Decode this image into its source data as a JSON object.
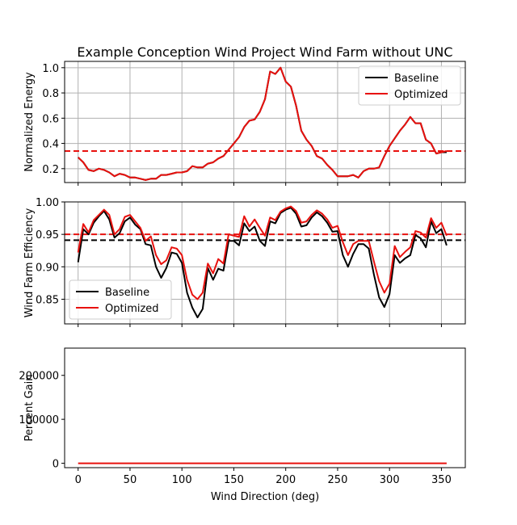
{
  "title": "Example Conception Wind Project Wind Farm without UNC",
  "colors": {
    "baseline": "#000000",
    "optimized": "#e8110e",
    "grid": "#b0b0b0"
  },
  "chart_data": [
    {
      "type": "line",
      "ylabel": "Normalized Energy",
      "xlabel": "",
      "xlim": [
        -13,
        373
      ],
      "ylim": [
        0.09,
        1.05
      ],
      "yticks": [
        0.2,
        0.4,
        0.6,
        0.8,
        1.0
      ],
      "ytick_labels": [
        "0.2",
        "0.4",
        "0.6",
        "0.8",
        "1.0"
      ],
      "xticks": [
        0,
        50,
        100,
        150,
        200,
        250,
        300,
        350
      ],
      "xtick_labels": [],
      "grid": true,
      "legend": {
        "position": "top-right",
        "entries": [
          "Baseline",
          "Optimized"
        ]
      },
      "hlines": [
        {
          "series": "Optimized",
          "y": 0.34,
          "style": "dashed"
        }
      ],
      "x": [
        0,
        5,
        10,
        15,
        20,
        25,
        30,
        35,
        40,
        45,
        50,
        55,
        60,
        65,
        70,
        75,
        80,
        85,
        90,
        95,
        100,
        105,
        110,
        115,
        120,
        125,
        130,
        135,
        140,
        145,
        150,
        155,
        160,
        165,
        170,
        175,
        180,
        185,
        190,
        195,
        200,
        205,
        210,
        215,
        220,
        225,
        230,
        235,
        240,
        245,
        250,
        255,
        260,
        265,
        270,
        275,
        280,
        285,
        290,
        295,
        300,
        305,
        310,
        315,
        320,
        325,
        330,
        335,
        340,
        345,
        350,
        355
      ],
      "series": [
        {
          "name": "Baseline",
          "values": [
            0.29,
            0.25,
            0.19,
            0.18,
            0.2,
            0.19,
            0.17,
            0.14,
            0.16,
            0.15,
            0.13,
            0.13,
            0.12,
            0.11,
            0.12,
            0.12,
            0.15,
            0.15,
            0.16,
            0.17,
            0.17,
            0.18,
            0.22,
            0.21,
            0.21,
            0.24,
            0.25,
            0.28,
            0.3,
            0.35,
            0.4,
            0.45,
            0.53,
            0.58,
            0.59,
            0.65,
            0.75,
            0.97,
            0.95,
            1.0,
            0.89,
            0.85,
            0.7,
            0.5,
            0.43,
            0.38,
            0.3,
            0.28,
            0.23,
            0.19,
            0.14,
            0.14,
            0.14,
            0.15,
            0.13,
            0.18,
            0.2,
            0.2,
            0.21,
            0.3,
            0.38,
            0.44,
            0.5,
            0.55,
            0.61,
            0.56,
            0.56,
            0.43,
            0.4,
            0.32,
            0.33,
            0.33
          ]
        },
        {
          "name": "Optimized",
          "values": [
            0.29,
            0.25,
            0.19,
            0.18,
            0.2,
            0.19,
            0.17,
            0.14,
            0.16,
            0.15,
            0.13,
            0.13,
            0.12,
            0.11,
            0.12,
            0.12,
            0.15,
            0.15,
            0.16,
            0.17,
            0.17,
            0.18,
            0.22,
            0.21,
            0.21,
            0.24,
            0.25,
            0.28,
            0.3,
            0.35,
            0.4,
            0.45,
            0.53,
            0.58,
            0.59,
            0.65,
            0.75,
            0.97,
            0.95,
            1.0,
            0.89,
            0.85,
            0.7,
            0.5,
            0.43,
            0.38,
            0.3,
            0.28,
            0.23,
            0.19,
            0.14,
            0.14,
            0.14,
            0.15,
            0.13,
            0.18,
            0.2,
            0.2,
            0.21,
            0.3,
            0.38,
            0.44,
            0.5,
            0.55,
            0.61,
            0.56,
            0.56,
            0.43,
            0.4,
            0.32,
            0.33,
            0.34
          ]
        }
      ]
    },
    {
      "type": "line",
      "ylabel": "Wind Farm Efficiency",
      "xlabel": "",
      "xlim": [
        -13,
        373
      ],
      "ylim": [
        0.812,
        1.0
      ],
      "yticks": [
        0.85,
        0.9,
        0.95,
        1.0
      ],
      "ytick_labels": [
        "0.85",
        "0.90",
        "0.95",
        "1.00"
      ],
      "xticks": [
        0,
        50,
        100,
        150,
        200,
        250,
        300,
        350
      ],
      "xtick_labels": [],
      "grid": true,
      "legend": {
        "position": "lower-left",
        "entries": [
          "Baseline",
          "Optimized"
        ]
      },
      "hlines": [
        {
          "series": "Baseline",
          "y": 0.941,
          "style": "dashed"
        },
        {
          "series": "Optimized",
          "y": 0.95,
          "style": "dashed"
        }
      ],
      "x": [
        0,
        5,
        10,
        15,
        20,
        25,
        30,
        35,
        40,
        45,
        50,
        55,
        60,
        65,
        70,
        75,
        80,
        85,
        90,
        95,
        100,
        105,
        110,
        115,
        120,
        125,
        130,
        135,
        140,
        145,
        150,
        155,
        160,
        165,
        170,
        175,
        180,
        185,
        190,
        195,
        200,
        205,
        210,
        215,
        220,
        225,
        230,
        235,
        240,
        245,
        250,
        255,
        260,
        265,
        270,
        275,
        280,
        285,
        290,
        295,
        300,
        305,
        310,
        315,
        320,
        325,
        330,
        335,
        340,
        345,
        350,
        355
      ],
      "series": [
        {
          "name": "Baseline",
          "values": [
            0.907,
            0.958,
            0.95,
            0.968,
            0.978,
            0.986,
            0.973,
            0.945,
            0.952,
            0.97,
            0.976,
            0.965,
            0.958,
            0.935,
            0.933,
            0.9,
            0.883,
            0.898,
            0.922,
            0.92,
            0.906,
            0.86,
            0.837,
            0.822,
            0.835,
            0.898,
            0.88,
            0.897,
            0.894,
            0.94,
            0.94,
            0.933,
            0.967,
            0.955,
            0.962,
            0.94,
            0.932,
            0.97,
            0.967,
            0.983,
            0.988,
            0.991,
            0.982,
            0.962,
            0.964,
            0.976,
            0.984,
            0.978,
            0.968,
            0.954,
            0.955,
            0.918,
            0.9,
            0.92,
            0.935,
            0.935,
            0.928,
            0.888,
            0.853,
            0.838,
            0.858,
            0.918,
            0.906,
            0.913,
            0.918,
            0.949,
            0.944,
            0.93,
            0.97,
            0.952,
            0.958,
            0.933
          ]
        },
        {
          "name": "Optimized",
          "values": [
            0.922,
            0.966,
            0.953,
            0.972,
            0.98,
            0.988,
            0.98,
            0.95,
            0.958,
            0.977,
            0.98,
            0.97,
            0.96,
            0.94,
            0.947,
            0.918,
            0.904,
            0.91,
            0.93,
            0.928,
            0.918,
            0.88,
            0.857,
            0.85,
            0.86,
            0.905,
            0.89,
            0.912,
            0.905,
            0.95,
            0.948,
            0.946,
            0.978,
            0.962,
            0.973,
            0.96,
            0.948,
            0.976,
            0.972,
            0.985,
            0.99,
            0.993,
            0.986,
            0.968,
            0.97,
            0.98,
            0.987,
            0.982,
            0.973,
            0.96,
            0.963,
            0.938,
            0.918,
            0.935,
            0.94,
            0.94,
            0.94,
            0.908,
            0.878,
            0.86,
            0.874,
            0.932,
            0.915,
            0.923,
            0.93,
            0.955,
            0.953,
            0.945,
            0.975,
            0.96,
            0.968,
            0.948
          ]
        }
      ]
    },
    {
      "type": "line",
      "ylabel": "Percent Gain",
      "xlabel": "Wind Direction (deg)",
      "xlim": [
        -13,
        373
      ],
      "ylim": [
        -10000,
        262000
      ],
      "yticks": [
        0,
        100000,
        200000
      ],
      "ytick_labels": [
        "0",
        "100000",
        "200000"
      ],
      "xticks": [
        0,
        50,
        100,
        150,
        200,
        250,
        300,
        350
      ],
      "xtick_labels": [
        "0",
        "50",
        "100",
        "150",
        "200",
        "250",
        "300",
        "350"
      ],
      "grid": false,
      "x": [
        0,
        5,
        10,
        15,
        20,
        25,
        30,
        35,
        40,
        45,
        50,
        55,
        60,
        65,
        70,
        75,
        80,
        85,
        90,
        95,
        100,
        105,
        110,
        115,
        120,
        125,
        130,
        135,
        140,
        145,
        150,
        155,
        160,
        165,
        170,
        175,
        180,
        185,
        190,
        195,
        200,
        205,
        210,
        215,
        220,
        225,
        230,
        235,
        240,
        245,
        250,
        255,
        260,
        265,
        270,
        275,
        280,
        285,
        290,
        295,
        300,
        305,
        310,
        315,
        320,
        325,
        330,
        335,
        340,
        345,
        350,
        355
      ],
      "series": [
        {
          "name": "Optimized",
          "values": [
            0,
            0,
            0,
            0,
            0,
            0,
            0,
            0,
            0,
            0,
            0,
            0,
            0,
            0,
            0,
            0,
            0,
            0,
            0,
            0,
            0,
            0,
            0,
            0,
            0,
            0,
            0,
            0,
            0,
            0,
            0,
            0,
            0,
            0,
            0,
            0,
            0,
            0,
            0,
            0,
            0,
            0,
            0,
            0,
            0,
            0,
            0,
            0,
            0,
            0,
            0,
            0,
            0,
            0,
            0,
            0,
            0,
            0,
            0,
            0,
            0,
            0,
            0,
            0,
            0,
            0,
            0,
            0,
            0,
            0,
            0,
            0
          ]
        }
      ]
    }
  ]
}
